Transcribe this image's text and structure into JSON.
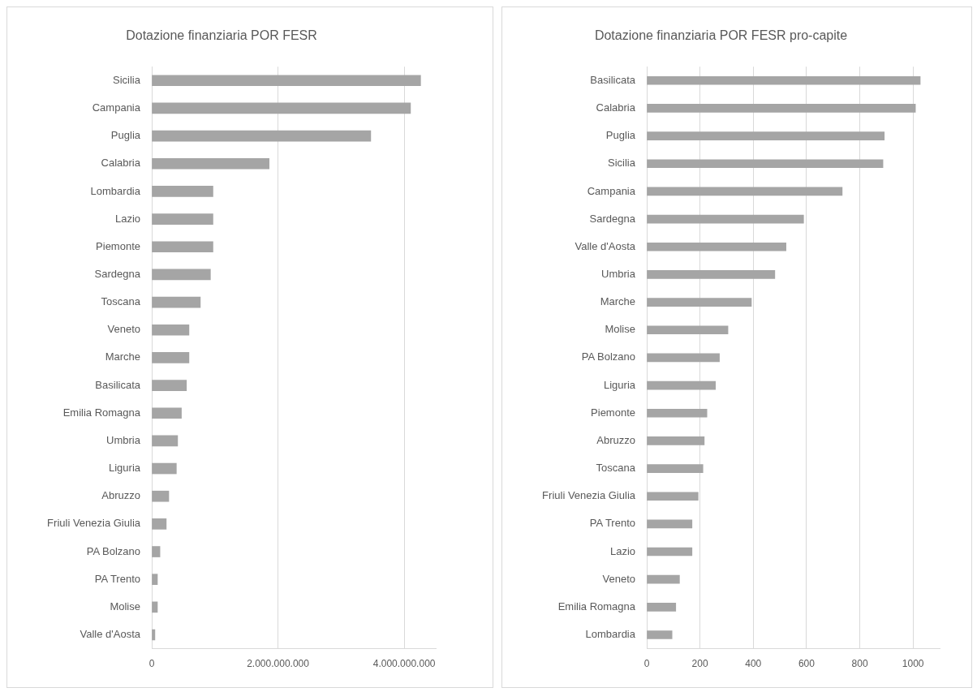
{
  "chart_data": [
    {
      "type": "bar",
      "orientation": "horizontal",
      "title": "Dotazione finanziaria POR FESR",
      "categories": [
        "Sicilia",
        "Campania",
        "Puglia",
        "Calabria",
        "Lombardia",
        "Lazio",
        "Piemonte",
        "Sardegna",
        "Toscana",
        "Veneto",
        "Marche",
        "Basilicata",
        "Emilia Romagna",
        "Umbria",
        "Liguria",
        "Abruzzo",
        "Friuli Venezia Giulia",
        "PA Bolzano",
        "PA Trento",
        "Molise",
        "Valle d'Aosta"
      ],
      "values": [
        4260000000,
        4100000000,
        3470000000,
        1860000000,
        970000000,
        970000000,
        970000000,
        930000000,
        770000000,
        590000000,
        590000000,
        550000000,
        470000000,
        410000000,
        390000000,
        270000000,
        230000000,
        130000000,
        90000000,
        90000000,
        50000000
      ],
      "color": "#a5a5a5",
      "xlim": [
        0,
        4500000000
      ],
      "xticks": [
        0,
        {
          "value": 2000000000,
          "label": "2.000.000.000"
        },
        {
          "value": 4000000000,
          "label": "4.000.000.000"
        }
      ],
      "grid": "x"
    },
    {
      "type": "bar",
      "orientation": "horizontal",
      "title": "Dotazione finanziaria POR FESR pro-capite",
      "categories": [
        "Basilicata",
        "Calabria",
        "Puglia",
        "Sicilia",
        "Campania",
        "Sardegna",
        "Valle d'Aosta",
        "Umbria",
        "Marche",
        "Molise",
        "PA Bolzano",
        "Liguria",
        "Piemonte",
        "Abruzzo",
        "Toscana",
        "Friuli Venezia Giulia",
        "PA Trento",
        "Lazio",
        "Veneto",
        "Emilia Romagna",
        "Lombardia"
      ],
      "values": [
        1027,
        1009,
        892,
        887,
        734,
        589,
        523,
        481,
        393,
        305,
        273,
        258,
        226,
        216,
        211,
        193,
        170,
        170,
        123,
        109,
        95
      ],
      "color": "#a5a5a5",
      "xlim": [
        0,
        1100
      ],
      "xticks": [
        0,
        200,
        400,
        600,
        800,
        1000
      ],
      "grid": "x"
    }
  ]
}
